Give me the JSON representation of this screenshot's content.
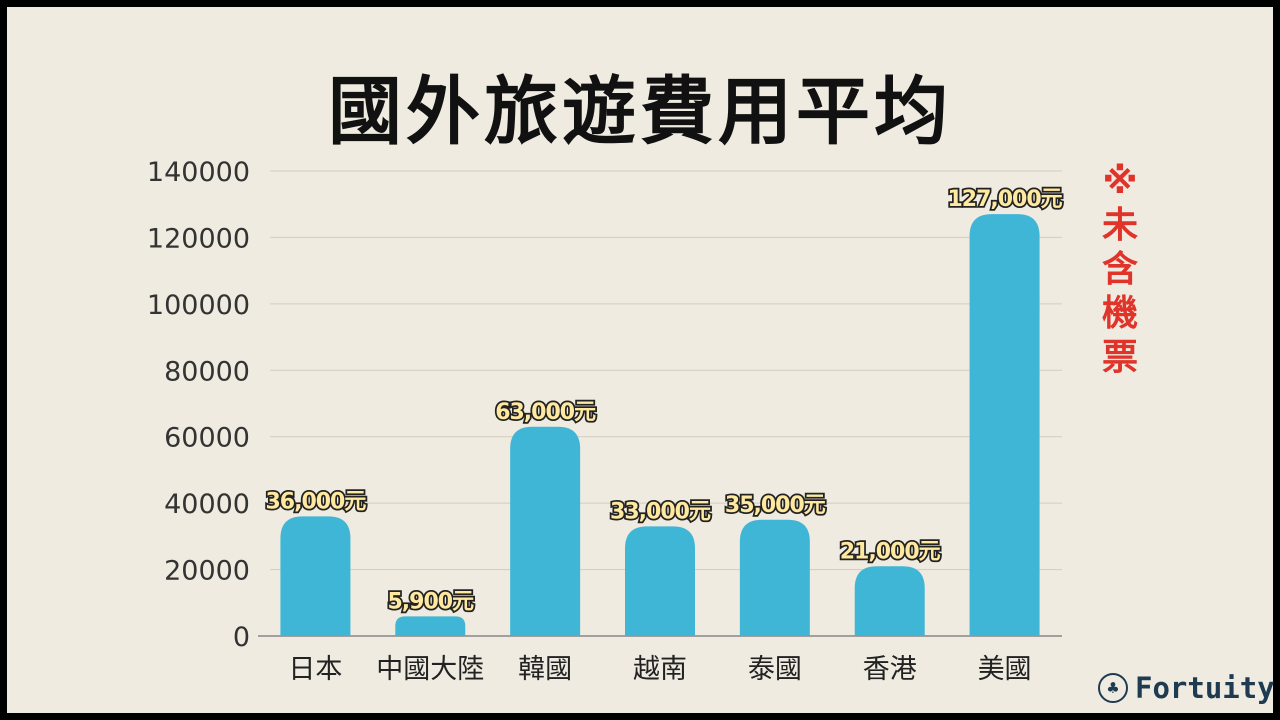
{
  "title": "國外旅遊費用平均",
  "note": {
    "mark": "※",
    "text": [
      "未",
      "含",
      "機",
      "票"
    ]
  },
  "brand": {
    "name": "Fortuity",
    "logo_icon": "tree-icon"
  },
  "colors": {
    "bar": "#40b6d6",
    "note": "#e0332a",
    "label_fill": "#ffe9a0",
    "label_stroke": "#222222",
    "grid": "#d2cdc0",
    "background": "#efebe0"
  },
  "chart_data": {
    "type": "bar",
    "title": "國外旅遊費用平均",
    "xlabel": "",
    "ylabel": "",
    "categories": [
      "日本",
      "中國大陸",
      "韓國",
      "越南",
      "泰國",
      "香港",
      "美國"
    ],
    "values": [
      36000,
      5900,
      63000,
      33000,
      35000,
      21000,
      127000
    ],
    "data_labels": [
      "36,000元",
      "5,900元",
      "63,000元",
      "33,000元",
      "35,000元",
      "21,000元",
      "127,000元"
    ],
    "ylim": [
      0,
      140000
    ],
    "yticks": [
      0,
      20000,
      40000,
      60000,
      80000,
      100000,
      120000,
      140000
    ],
    "ytick_labels": [
      "0",
      "20000",
      "40000",
      "60000",
      "80000",
      "100000",
      "120000",
      "140000"
    ],
    "grid": true,
    "legend": false
  }
}
